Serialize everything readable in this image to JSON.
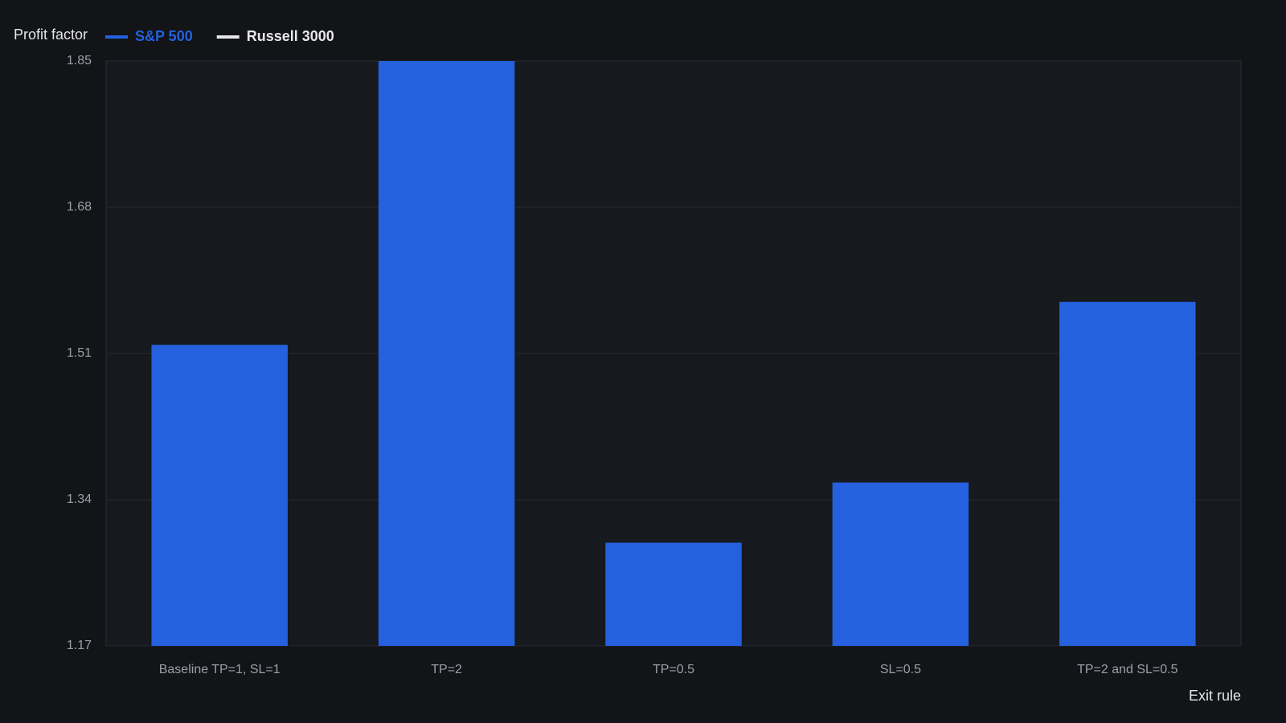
{
  "chart_data": {
    "type": "bar",
    "y_axis_label": "Profit factor",
    "x_axis_label": "Exit rule",
    "categories": [
      "Baseline TP=1, SL=1",
      "TP=2",
      "TP=0.5",
      "SL=0.5",
      "TP=2 and SL=0.5"
    ],
    "series": [
      {
        "name": "S&P 500",
        "color": "#2561de",
        "values": [
          1.52,
          1.85,
          1.29,
          1.36,
          1.57
        ]
      },
      {
        "name": "Russell 3000",
        "color": "#e8e8e8",
        "values": [
          null,
          null,
          null,
          null,
          null
        ]
      }
    ],
    "ylim": [
      1.17,
      1.85
    ],
    "yticks": [
      1.17,
      1.34,
      1.51,
      1.68,
      1.85
    ],
    "grid": true
  }
}
